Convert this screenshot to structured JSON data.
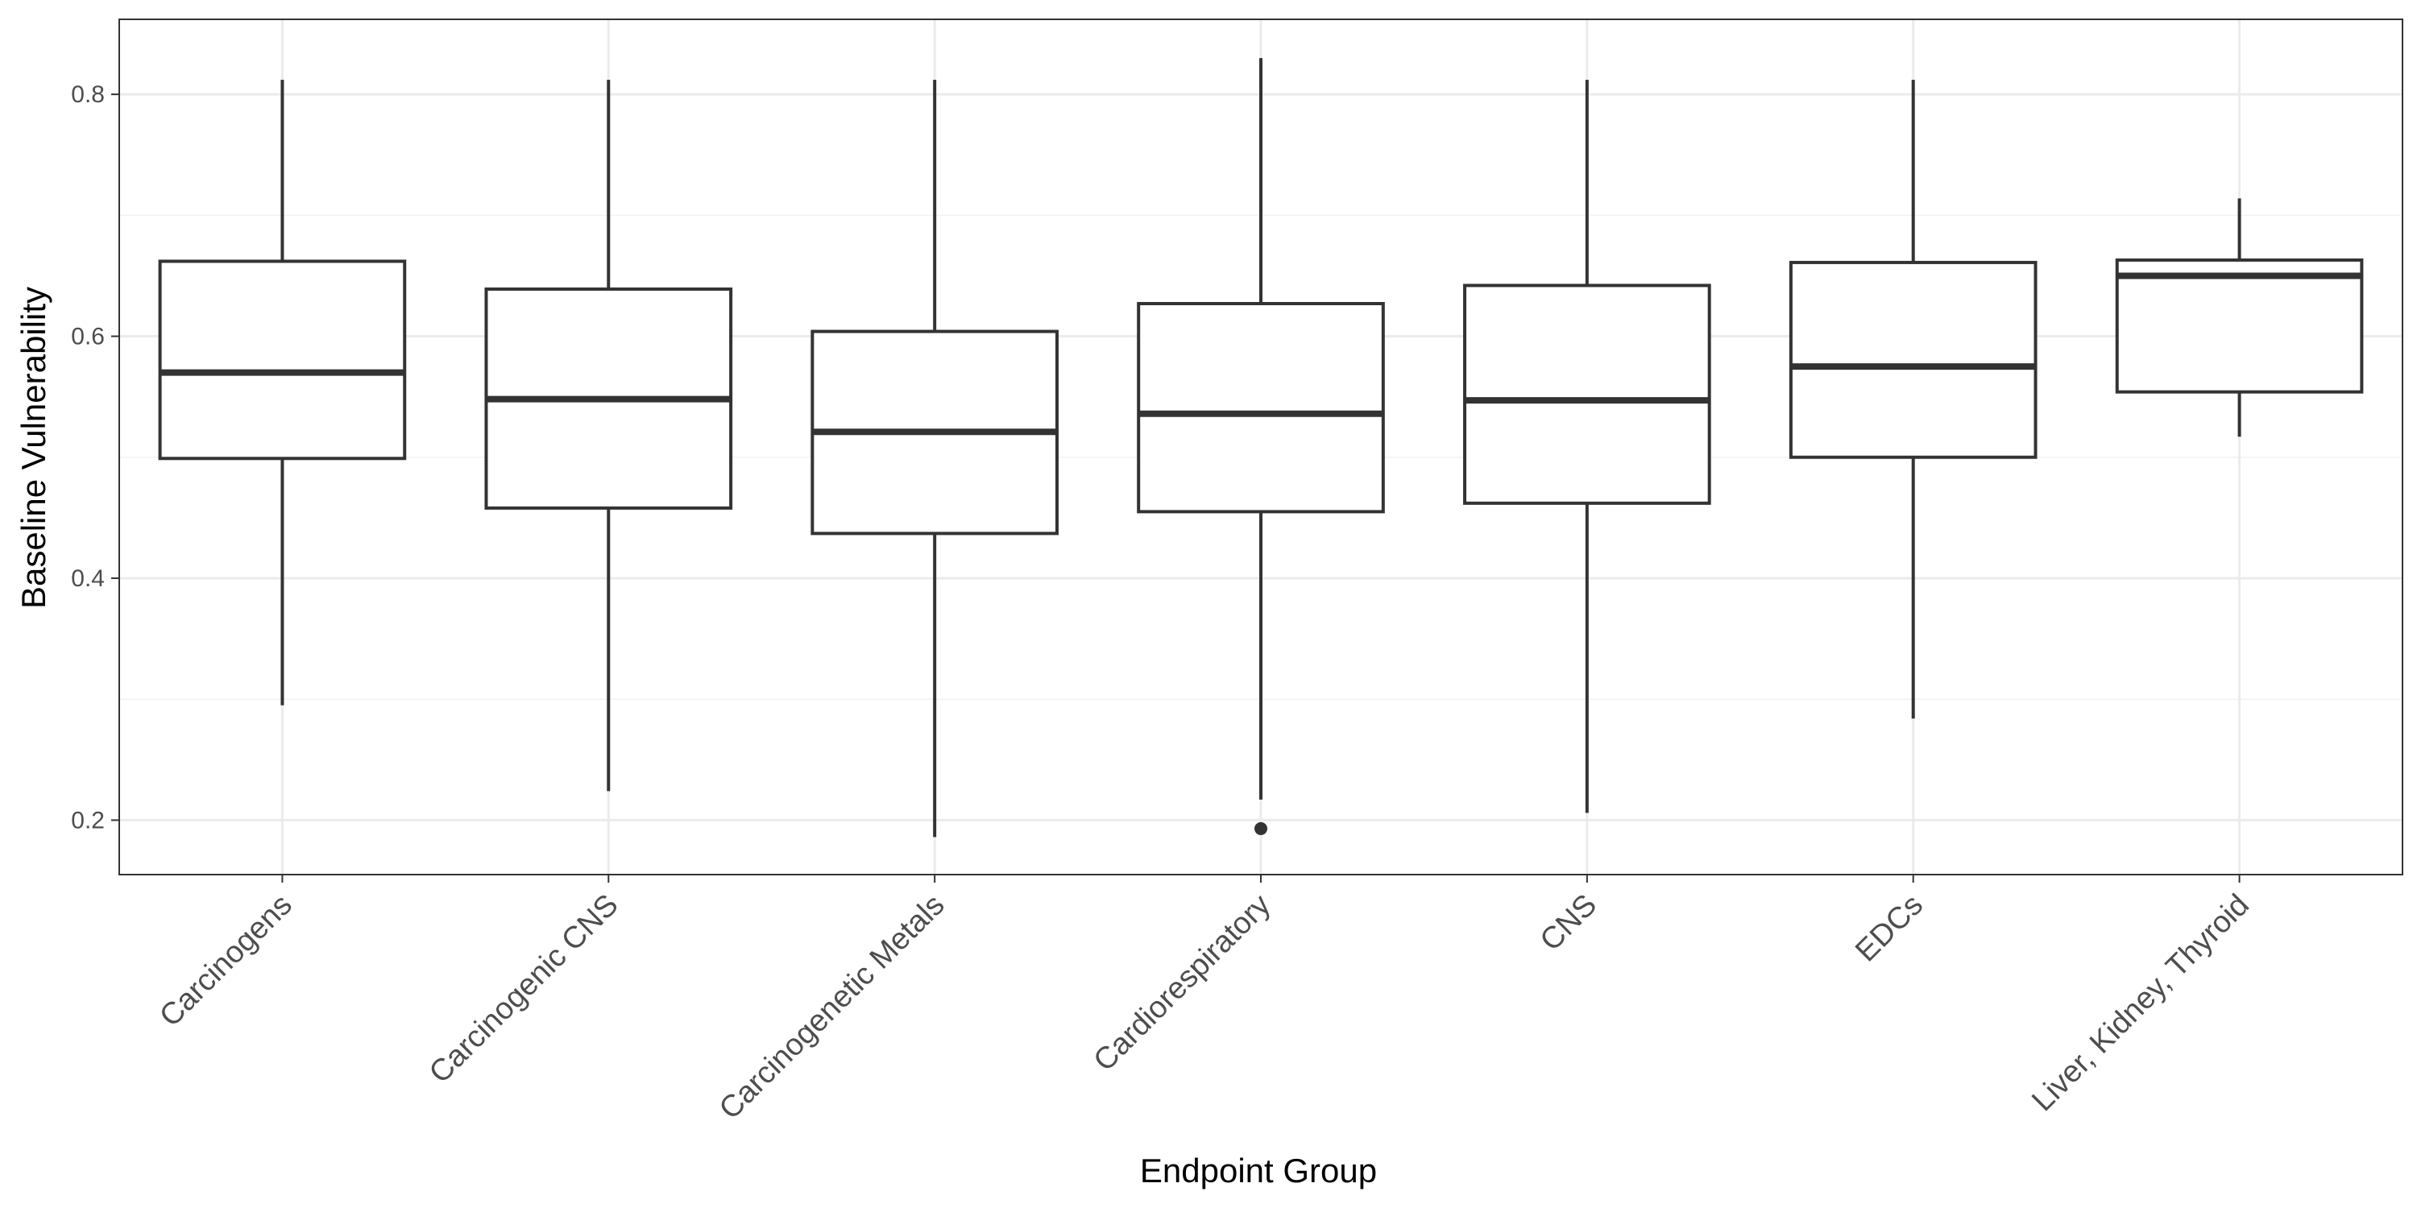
{
  "chart_data": {
    "type": "boxplot",
    "xlabel": "Endpoint Group",
    "ylabel": "Baseline Vulnerability",
    "ylim": [
      0.155,
      0.862
    ],
    "yticks": [
      0.2,
      0.4,
      0.6,
      0.8
    ],
    "ytick_labels": [
      "0.2",
      "0.4",
      "0.6",
      "0.8"
    ],
    "grid": true,
    "categories": [
      "Carcinogens",
      "Carcinogenic CNS",
      "Carcinogenetic Metals",
      "Cardiorespiratory",
      "CNS",
      "EDCs",
      "Liver, Kidney, Thyroid"
    ],
    "boxes": [
      {
        "category": "Carcinogens",
        "whisker_low": 0.295,
        "q1": 0.499,
        "median": 0.57,
        "q3": 0.662,
        "whisker_high": 0.812,
        "outliers": []
      },
      {
        "category": "Carcinogenic CNS",
        "whisker_low": 0.224,
        "q1": 0.458,
        "median": 0.548,
        "q3": 0.639,
        "whisker_high": 0.812,
        "outliers": []
      },
      {
        "category": "Carcinogenetic Metals",
        "whisker_low": 0.186,
        "q1": 0.437,
        "median": 0.521,
        "q3": 0.604,
        "whisker_high": 0.812,
        "outliers": []
      },
      {
        "category": "Cardiorespiratory",
        "whisker_low": 0.217,
        "q1": 0.455,
        "median": 0.536,
        "q3": 0.627,
        "whisker_high": 0.83,
        "outliers": [
          0.193
        ]
      },
      {
        "category": "CNS",
        "whisker_low": 0.206,
        "q1": 0.462,
        "median": 0.547,
        "q3": 0.642,
        "whisker_high": 0.812,
        "outliers": []
      },
      {
        "category": "EDCs",
        "whisker_low": 0.284,
        "q1": 0.5,
        "median": 0.575,
        "q3": 0.661,
        "whisker_high": 0.812,
        "outliers": []
      },
      {
        "category": "Liver, Kidney, Thyroid",
        "whisker_low": 0.517,
        "q1": 0.554,
        "median": 0.65,
        "q3": 0.663,
        "whisker_high": 0.714,
        "outliers": []
      }
    ],
    "colors": {
      "box_stroke": "#333333",
      "box_fill": "#ffffff",
      "grid_major": "#ebebeb",
      "grid_minor": "#f2f2f2",
      "panel_border": "#333333"
    }
  }
}
